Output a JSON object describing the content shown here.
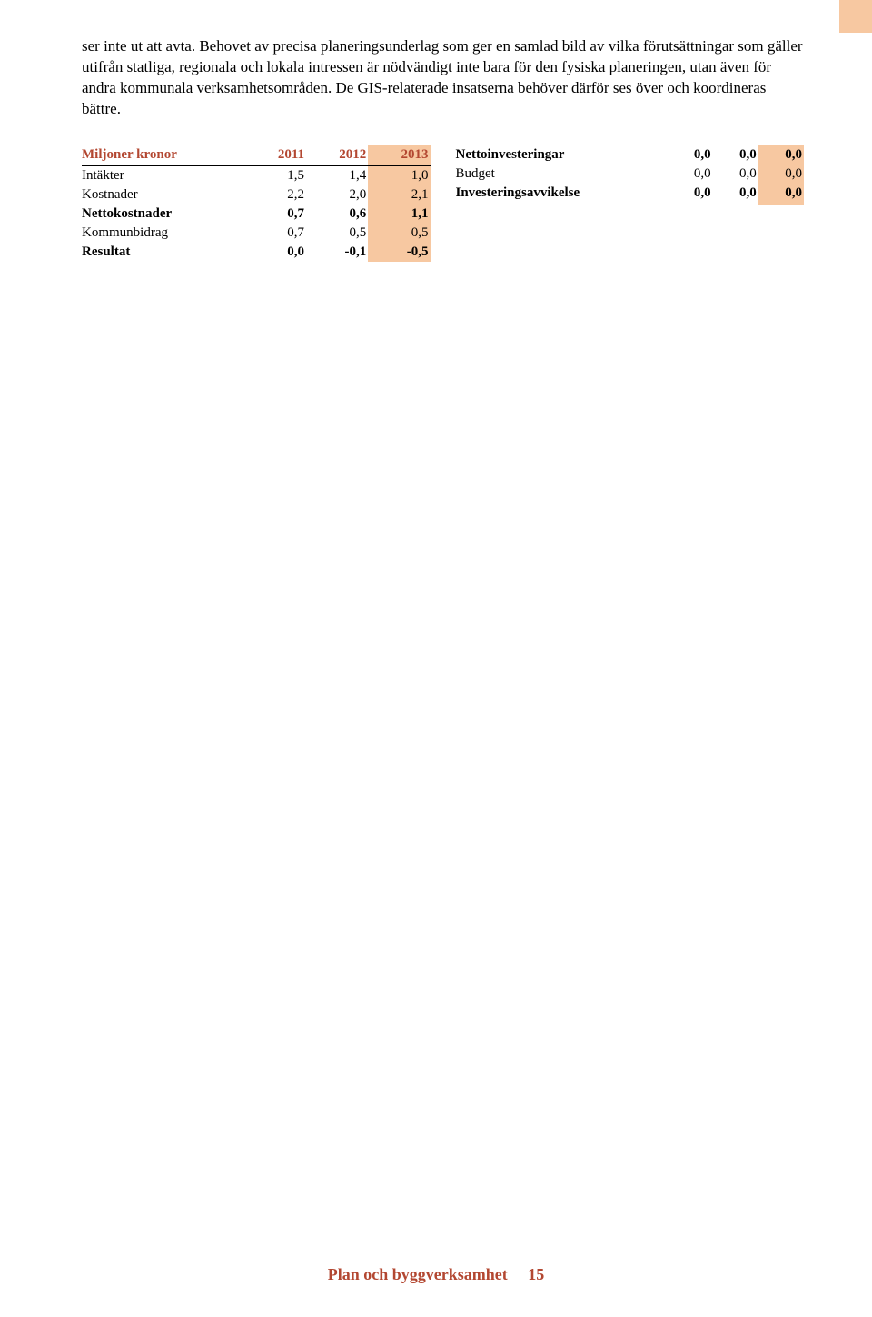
{
  "paragraph": "ser inte ut att avta. Behovet av precisa planeringsunderlag som ger en samlad bild av vilka förutsättningar som gäller utifrån statliga, regionala och lokala intressen är nödvändigt inte bara för den fysiska planeringen, utan även för andra kommunala verksamhetsområden. De GIS-relaterade insatserna behöver därför ses över och koordineras bättre.",
  "left_table": {
    "header_label": "Miljoner kronor",
    "years": [
      "2011",
      "2012",
      "2013"
    ],
    "highlight_col": 2,
    "rows": [
      {
        "label": "Intäkter",
        "vals": [
          "1,5",
          "1,4",
          "1,0"
        ],
        "bold": false
      },
      {
        "label": "Kostnader",
        "vals": [
          "2,2",
          "2,0",
          "2,1"
        ],
        "bold": false
      },
      {
        "label": "Nettokostnader",
        "vals": [
          "0,7",
          "0,6",
          "1,1"
        ],
        "bold": true
      },
      {
        "label": "Kommunbidrag",
        "vals": [
          "0,7",
          "0,5",
          "0,5"
        ],
        "bold": false
      },
      {
        "label": "Resultat",
        "vals": [
          "0,0",
          "-0,1",
          "-0,5"
        ],
        "bold": true
      }
    ]
  },
  "right_table": {
    "highlight_col": 2,
    "rows": [
      {
        "label": "Nettoinvesteringar",
        "vals": [
          "0,0",
          "0,0",
          "0,0"
        ],
        "bold": true
      },
      {
        "label": "Budget",
        "vals": [
          "0,0",
          "0,0",
          "0,0"
        ],
        "bold": false
      },
      {
        "label": "Investeringsavvikelse",
        "vals": [
          "0,0",
          "0,0",
          "0,0"
        ],
        "bold": true
      }
    ]
  },
  "footer": {
    "title": "Plan och byggverksamhet",
    "page": "15"
  },
  "colors": {
    "accent_text": "#b34731",
    "highlight_bg": "#f7c8a1",
    "body_text": "#000000",
    "page_bg": "#ffffff"
  }
}
